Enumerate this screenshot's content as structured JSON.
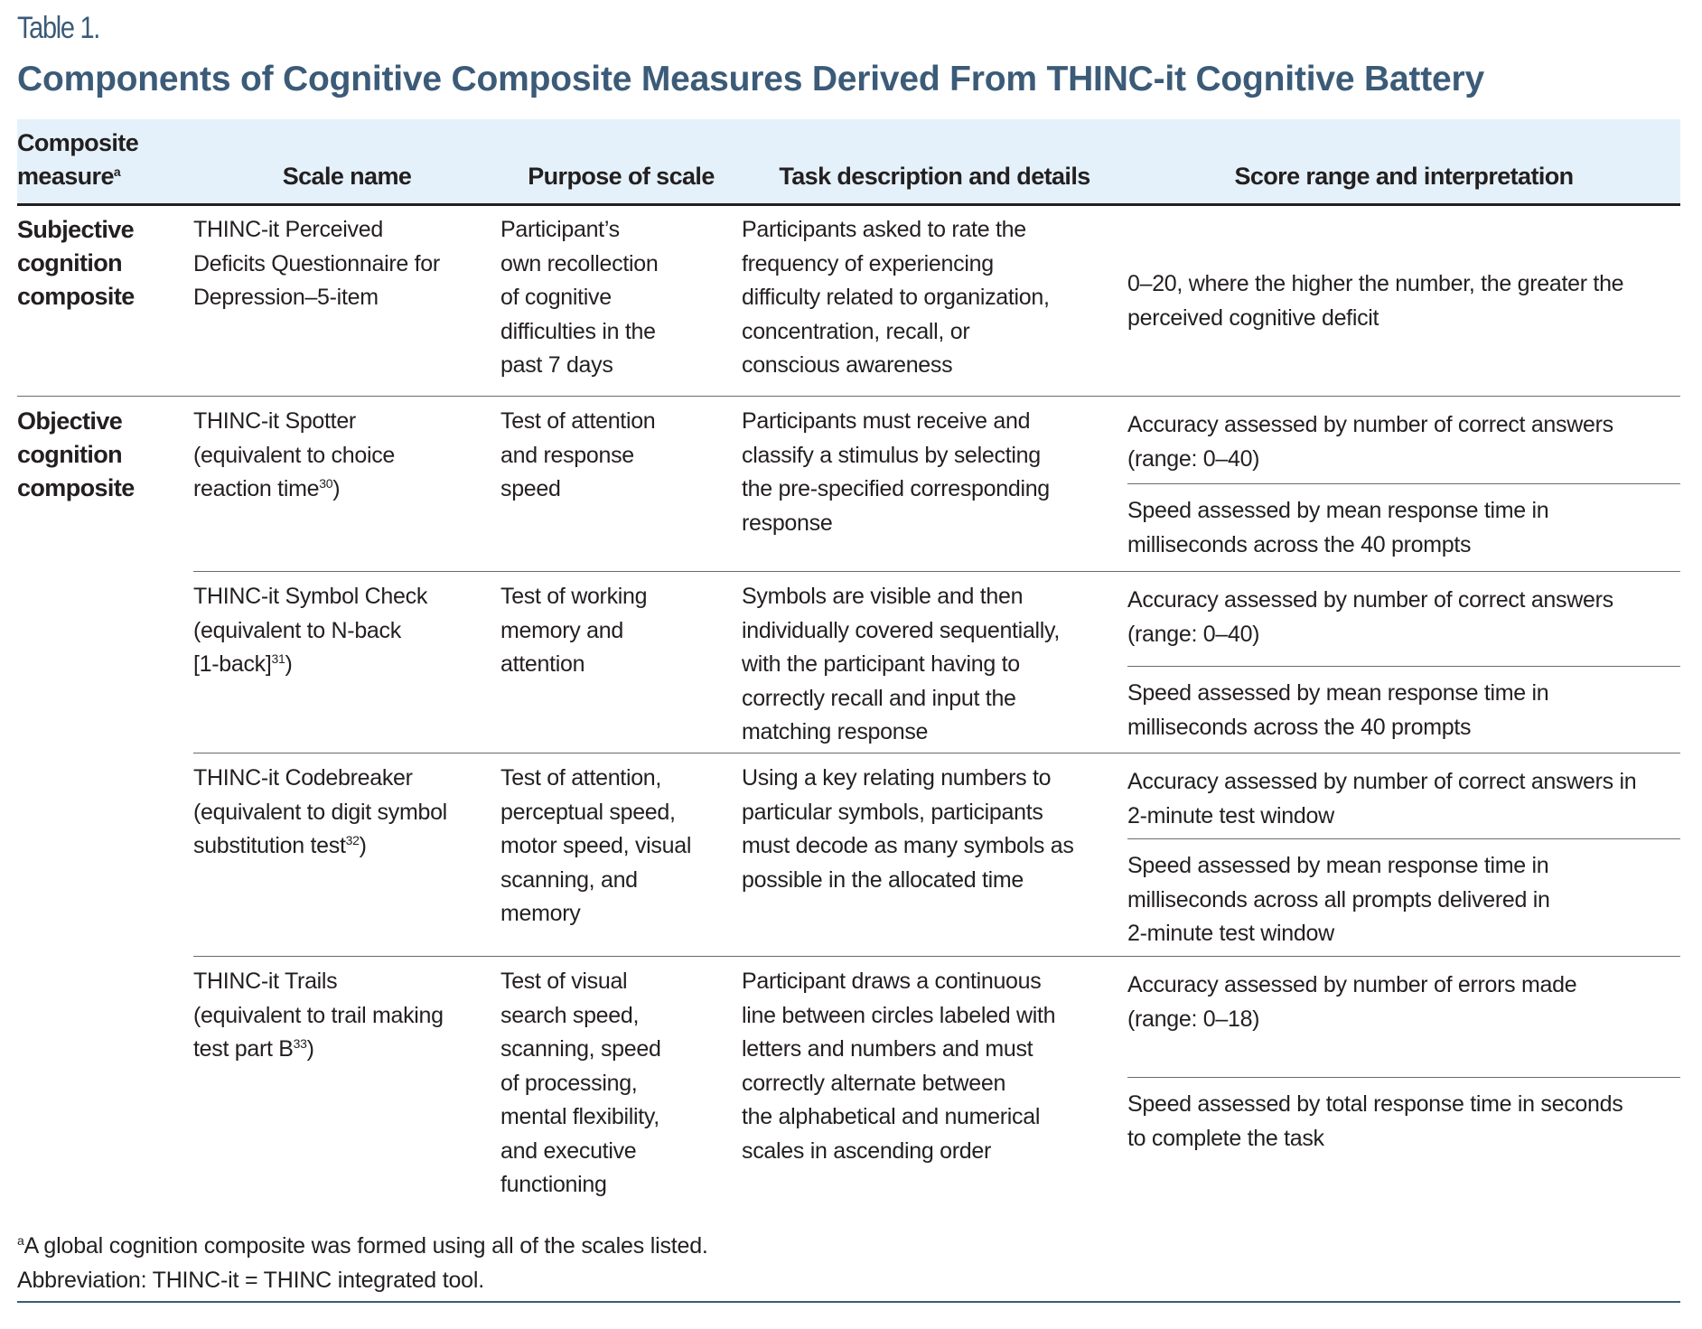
{
  "table_label": "Table 1.",
  "title": "Components of Cognitive Composite Measures Derived From THINC-it Cognitive Battery",
  "colors": {
    "title": "#3b5b78",
    "header_band": "#e4f1fa"
  },
  "headers": {
    "composite": "Composite\nmeasure",
    "composite_sup": "a",
    "scale": "Scale name",
    "purpose": "Purpose of scale",
    "task": "Task description and details",
    "score": "Score range and interpretation"
  },
  "rows": [
    {
      "composite": "Subjective\ncognition\ncomposite",
      "scale": {
        "pre": "THINC-it Perceived\nDeficits Questionnaire for\nDepression–5-item",
        "sup": "",
        "post": ""
      },
      "purpose": "Participant’s\nown recollection\nof cognitive\ndifficulties in the\npast 7 days",
      "task": "Participants asked to rate the\nfrequency of experiencing\ndifficulty related to organization,\nconcentration, recall, or\nconscious awareness",
      "score": [
        "0–20, where the higher the number, the greater the\nperceived cognitive deficit"
      ]
    },
    {
      "composite": "Objective\ncognition\ncomposite",
      "scale": {
        "pre": "THINC-it Spotter\n(equivalent to choice\nreaction time",
        "sup": "30",
        "post": ")"
      },
      "purpose": "Test of attention\nand response\nspeed",
      "task": "Participants must receive and\nclassify a stimulus by selecting\nthe pre-specified corresponding\nresponse",
      "score": [
        "Accuracy assessed by number of correct answers\n(range: 0–40)",
        "Speed assessed by mean response time in\nmilliseconds across the 40 prompts"
      ]
    },
    {
      "composite": "",
      "scale": {
        "pre": "THINC-it Symbol Check\n(equivalent to N-back\n[1-back]",
        "sup": "31",
        "post": ")"
      },
      "purpose": "Test of working\nmemory and\nattention",
      "task": "Symbols are visible and then\nindividually covered sequentially,\nwith the participant having to\ncorrectly recall and input the\nmatching response",
      "score": [
        "Accuracy assessed by number of correct answers\n(range: 0–40)",
        "Speed assessed by mean response time in\nmilliseconds across the 40 prompts"
      ]
    },
    {
      "composite": "",
      "scale": {
        "pre": "THINC-it Codebreaker\n(equivalent to digit symbol\nsubstitution test",
        "sup": "32",
        "post": ")"
      },
      "purpose": "Test of attention,\nperceptual speed,\nmotor speed, visual\nscanning, and\nmemory",
      "task": "Using a key relating numbers to\nparticular symbols, participants\nmust decode as many symbols as\npossible in the allocated time",
      "score": [
        "Accuracy assessed by number of correct answers in\n2-minute test window",
        "Speed assessed by mean response time in\nmilliseconds across all prompts delivered in\n2-minute test window"
      ]
    },
    {
      "composite": "",
      "scale": {
        "pre": "THINC-it Trails\n(equivalent to trail making\ntest part B",
        "sup": "33",
        "post": ")"
      },
      "purpose": "Test of visual\nsearch speed,\nscanning, speed\nof processing,\nmental flexibility,\nand executive\nfunctioning",
      "task": "Participant draws a continuous\nline between circles labeled with\nletters and numbers and must\ncorrectly alternate between\nthe alphabetical and numerical\nscales in ascending order",
      "score": [
        "Accuracy assessed by number of errors made\n(range: 0–18)",
        "Speed assessed by total response time in seconds\nto complete the task"
      ]
    }
  ],
  "footnotes": {
    "a_sup": "a",
    "a": "A global cognition composite was formed using all of the scales listed.",
    "abbrev": "Abbreviation: THINC-it = THINC integrated tool."
  }
}
